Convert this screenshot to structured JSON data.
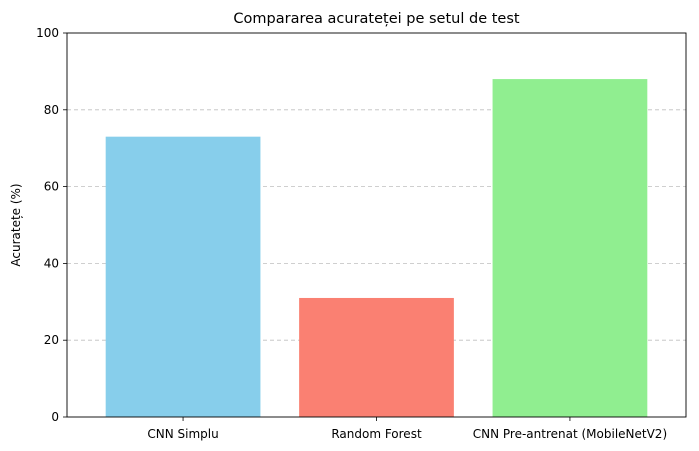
{
  "chart_data": {
    "type": "bar",
    "title": "Compararea acurateței pe setul de test",
    "xlabel": "",
    "ylabel": "Acuratețe (%)",
    "categories": [
      "CNN Simplu",
      "Random Forest",
      "CNN Pre-antrenat (MobileNetV2)"
    ],
    "values": [
      73,
      31,
      88
    ],
    "colors": [
      "#87ceeb",
      "#fa8072",
      "#90ee90"
    ],
    "ylim": [
      0,
      100
    ],
    "yticks": [
      "0",
      "20",
      "40",
      "60",
      "80",
      "100"
    ],
    "grid": "y-dashed",
    "legend": "none"
  }
}
